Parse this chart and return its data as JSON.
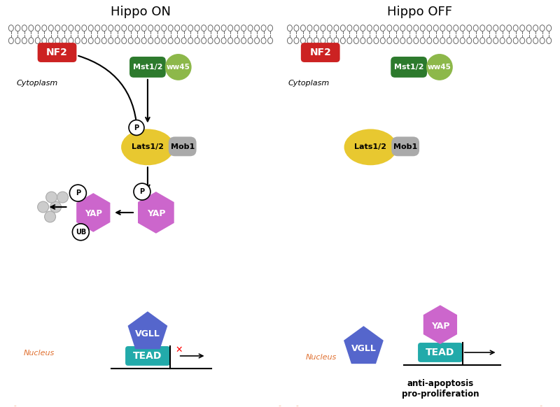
{
  "bg_color": "#ffffff",
  "membrane_color": "#666666",
  "nf2_color": "#cc2222",
  "mst_color": "#2d7a2d",
  "ww45_color": "#8db84a",
  "lats_color": "#e8c830",
  "mob1_color": "#aaaaaa",
  "yap_color": "#cc66cc",
  "vgll_color": "#5566cc",
  "tead_color": "#22aaaa",
  "nucleus_color": "#e07030",
  "hippo_on_title": "Hippo ON",
  "hippo_off_title": "Hippo OFF",
  "cytoplasm_text": "Cytoplasm",
  "nucleus_text": "Nucleus"
}
